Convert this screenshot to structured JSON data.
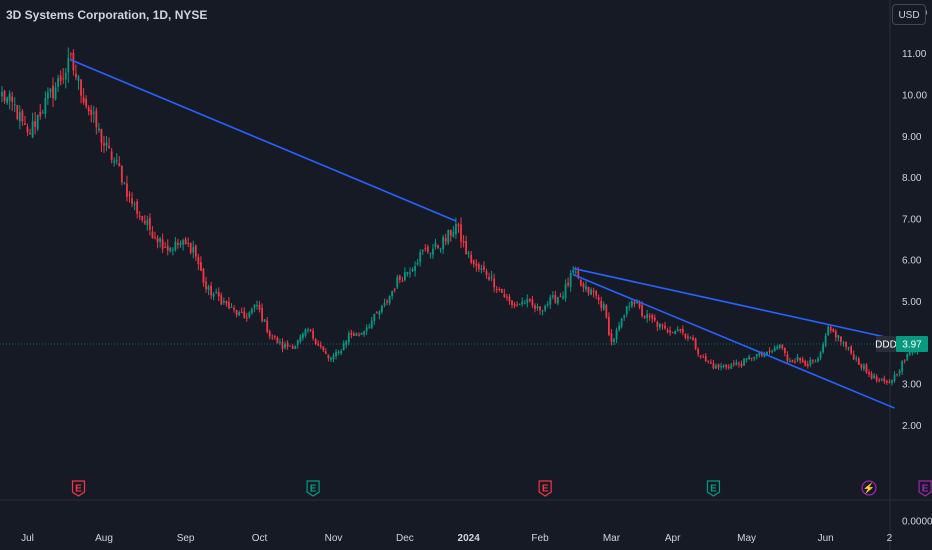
{
  "header": {
    "title": "3D Systems Corporation, 1D, NYSE",
    "currency_label": "USD"
  },
  "price_tag": {
    "symbol": "DDD",
    "value": "3.97",
    "color": "#089981"
  },
  "colors": {
    "background": "#161a25",
    "up": "#089981",
    "down": "#f23645",
    "trendline": "#2962ff",
    "earnings": "#f23645",
    "dividends": "#089981",
    "special": "#9c27b0",
    "axis_text": "#d1d4dc"
  },
  "event_badges": [
    {
      "label": "E",
      "type": "earnings",
      "date_index": 30
    },
    {
      "label": "E",
      "type": "dividend",
      "date_index": 122
    },
    {
      "label": "E",
      "type": "earnings",
      "date_index": 213
    },
    {
      "label": "E",
      "type": "dividend",
      "date_index": 279
    },
    {
      "label": "⚡",
      "type": "special",
      "date_index": 340
    },
    {
      "label": "E",
      "type": "special",
      "date_index": 362
    }
  ],
  "chart_data": {
    "type": "candlestick",
    "title": "3D Systems Corporation, 1D, NYSE",
    "ylabel": "USD",
    "ylim": [
      0,
      12.5
    ],
    "y_ticks": [
      "12.00",
      "11.00",
      "10.00",
      "9.00",
      "8.00",
      "7.00",
      "6.00",
      "5.00",
      "4.00",
      "3.00",
      "2.00",
      "0.0000"
    ],
    "y_tick_values": [
      12,
      11,
      10,
      9,
      8,
      7,
      6,
      5,
      4,
      3,
      2,
      0
    ],
    "x_ticks": [
      {
        "label": "Jul",
        "index": 10,
        "bold": false
      },
      {
        "label": "Aug",
        "index": 40,
        "bold": false
      },
      {
        "label": "Sep",
        "index": 72,
        "bold": false
      },
      {
        "label": "Oct",
        "index": 101,
        "bold": false
      },
      {
        "label": "Nov",
        "index": 130,
        "bold": false
      },
      {
        "label": "Dec",
        "index": 158,
        "bold": false
      },
      {
        "label": "2024",
        "index": 183,
        "bold": true
      },
      {
        "label": "Feb",
        "index": 211,
        "bold": false
      },
      {
        "label": "Mar",
        "index": 239,
        "bold": false
      },
      {
        "label": "Apr",
        "index": 263,
        "bold": false
      },
      {
        "label": "May",
        "index": 292,
        "bold": false
      },
      {
        "label": "Jun",
        "index": 323,
        "bold": false
      },
      {
        "label": "2",
        "index": 348,
        "bold": false
      },
      {
        "label": "Aug",
        "index": 375,
        "bold": false
      },
      {
        "label": "Sep",
        "index": 404,
        "bold": false
      },
      {
        "label": "Oct",
        "index": 432,
        "bold": false
      }
    ],
    "last_price": 3.97,
    "anchors": [
      [
        0,
        10.0
      ],
      [
        5,
        9.7
      ],
      [
        10,
        9.0
      ],
      [
        15,
        9.6
      ],
      [
        20,
        10.1
      ],
      [
        27,
        10.8
      ],
      [
        33,
        9.8
      ],
      [
        40,
        8.8
      ],
      [
        46,
        8.2
      ],
      [
        50,
        7.5
      ],
      [
        55,
        7.0
      ],
      [
        60,
        6.6
      ],
      [
        65,
        6.3
      ],
      [
        70,
        6.4
      ],
      [
        75,
        6.3
      ],
      [
        80,
        5.3
      ],
      [
        85,
        5.1
      ],
      [
        90,
        4.8
      ],
      [
        95,
        4.6
      ],
      [
        100,
        4.9
      ],
      [
        105,
        4.2
      ],
      [
        110,
        3.9
      ],
      [
        115,
        3.95
      ],
      [
        120,
        4.3
      ],
      [
        125,
        3.9
      ],
      [
        128,
        3.6
      ],
      [
        132,
        3.75
      ],
      [
        136,
        4.2
      ],
      [
        140,
        4.2
      ],
      [
        146,
        4.6
      ],
      [
        150,
        4.9
      ],
      [
        155,
        5.5
      ],
      [
        160,
        5.8
      ],
      [
        165,
        6.2
      ],
      [
        170,
        6.3
      ],
      [
        174,
        6.5
      ],
      [
        178,
        6.85
      ],
      [
        182,
        6.2
      ],
      [
        186,
        5.8
      ],
      [
        190,
        5.7
      ],
      [
        195,
        5.3
      ],
      [
        200,
        4.9
      ],
      [
        205,
        5.0
      ],
      [
        210,
        4.8
      ],
      [
        215,
        5.0
      ],
      [
        220,
        5.2
      ],
      [
        224,
        5.7
      ],
      [
        228,
        5.3
      ],
      [
        232,
        5.2
      ],
      [
        236,
        4.85
      ],
      [
        239,
        4.0
      ],
      [
        243,
        4.5
      ],
      [
        247,
        5.1
      ],
      [
        251,
        4.7
      ],
      [
        256,
        4.5
      ],
      [
        260,
        4.3
      ],
      [
        265,
        4.35
      ],
      [
        270,
        4.1
      ],
      [
        275,
        3.6
      ],
      [
        280,
        3.4
      ],
      [
        285,
        3.45
      ],
      [
        290,
        3.5
      ],
      [
        295,
        3.7
      ],
      [
        300,
        3.7
      ],
      [
        305,
        3.95
      ],
      [
        308,
        3.6
      ],
      [
        312,
        3.6
      ],
      [
        316,
        3.5
      ],
      [
        320,
        3.55
      ],
      [
        324,
        4.3
      ],
      [
        327,
        4.2
      ],
      [
        331,
        3.9
      ],
      [
        335,
        3.6
      ],
      [
        339,
        3.3
      ],
      [
        343,
        3.1
      ],
      [
        347,
        3.0
      ],
      [
        350,
        3.2
      ],
      [
        353,
        3.5
      ],
      [
        356,
        3.75
      ],
      [
        359,
        3.97
      ]
    ],
    "trendlines": [
      {
        "name": "upper-long",
        "start": [
          27,
          10.85
        ],
        "end": [
          178,
          6.95
        ]
      },
      {
        "name": "middle",
        "start": [
          224,
          5.8
        ],
        "end": [
          359,
          3.97
        ]
      },
      {
        "name": "lower",
        "start": [
          224,
          5.65
        ],
        "end": [
          350,
          2.42
        ]
      }
    ]
  }
}
